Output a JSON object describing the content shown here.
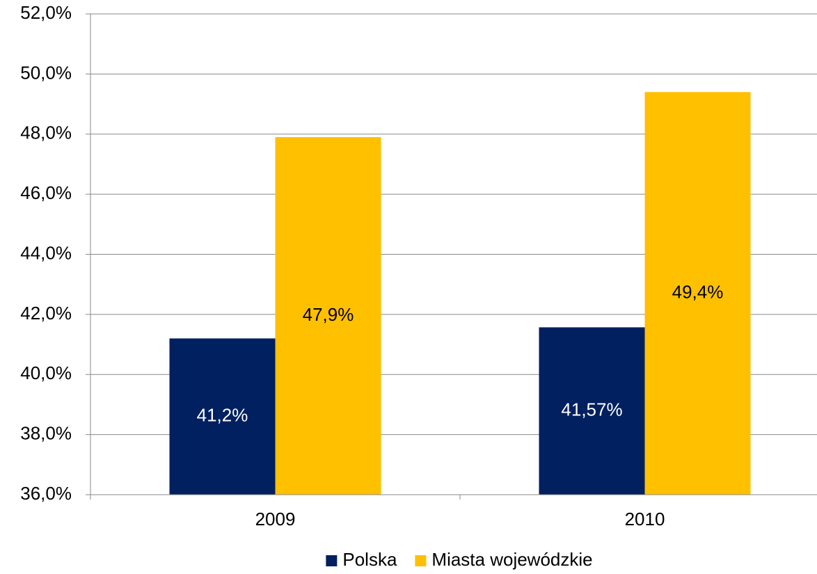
{
  "chart_data": {
    "type": "bar",
    "categories": [
      "2009",
      "2010"
    ],
    "series": [
      {
        "name": "Polska",
        "color": "#002060",
        "values": [
          41.2,
          41.57
        ],
        "value_labels": [
          "41,2%",
          "41,57%"
        ],
        "label_color": "#ffffff"
      },
      {
        "name": "Miasta wojewódzkie",
        "color": "#ffc000",
        "values": [
          47.9,
          49.4
        ],
        "value_labels": [
          "47,9%",
          "49,4%"
        ],
        "label_color": "#000000"
      }
    ],
    "ylim": [
      36,
      52
    ],
    "yticks": [
      {
        "value": 36,
        "label": "36,0%"
      },
      {
        "value": 38,
        "label": "38,0%"
      },
      {
        "value": 40,
        "label": "40,0%"
      },
      {
        "value": 42,
        "label": "42,0%"
      },
      {
        "value": 44,
        "label": "44,0%"
      },
      {
        "value": 46,
        "label": "46,0%"
      },
      {
        "value": 48,
        "label": "48,0%"
      },
      {
        "value": 50,
        "label": "50,0%"
      },
      {
        "value": 52,
        "label": "52,0%"
      }
    ],
    "grid": true,
    "legend": "bottom"
  }
}
